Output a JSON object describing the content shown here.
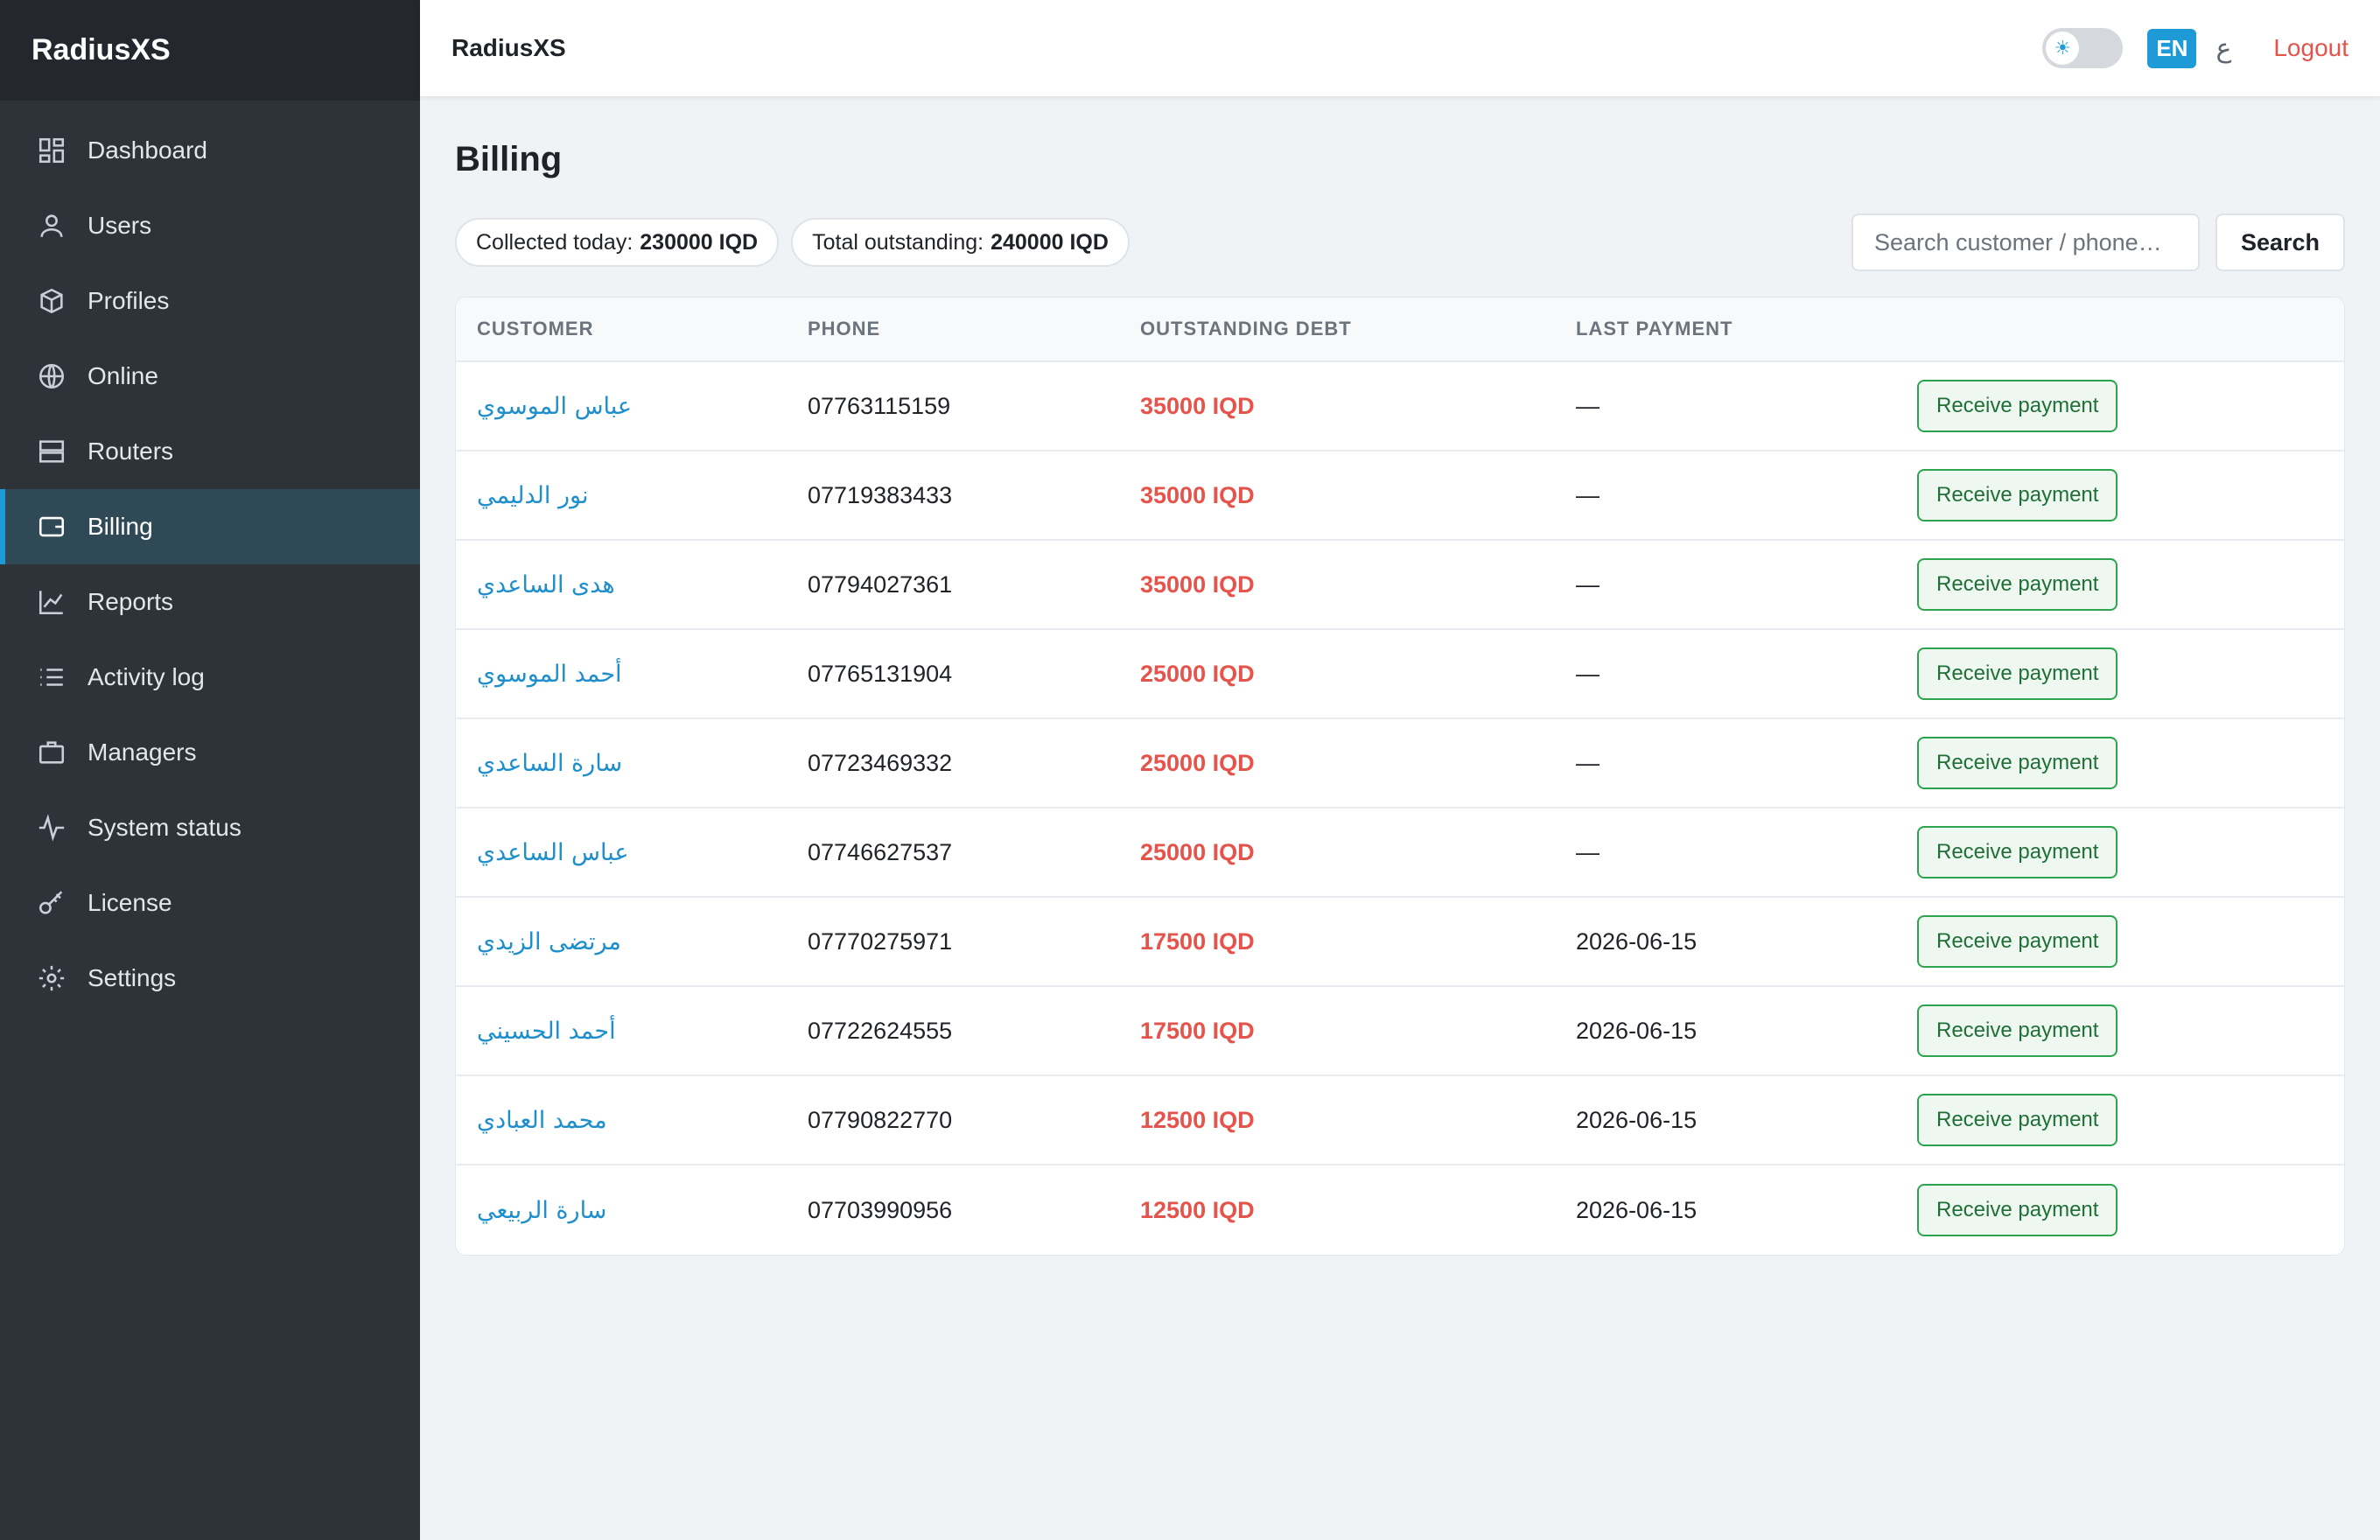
{
  "app": {
    "brand": "RadiusXS",
    "top_title": "RadiusXS"
  },
  "topbar": {
    "theme_icon": "sun-icon",
    "lang_en": "EN",
    "lang_ar": "ع",
    "logout": "Logout"
  },
  "sidebar": {
    "items": [
      {
        "label": "Dashboard",
        "icon": "dashboard-icon"
      },
      {
        "label": "Users",
        "icon": "user-icon"
      },
      {
        "label": "Profiles",
        "icon": "box-icon"
      },
      {
        "label": "Online",
        "icon": "globe-icon"
      },
      {
        "label": "Routers",
        "icon": "server-icon"
      },
      {
        "label": "Billing",
        "icon": "wallet-icon",
        "active": true
      },
      {
        "label": "Reports",
        "icon": "chart-icon"
      },
      {
        "label": "Activity log",
        "icon": "list-icon"
      },
      {
        "label": "Managers",
        "icon": "briefcase-icon"
      },
      {
        "label": "System status",
        "icon": "pulse-icon"
      },
      {
        "label": "License",
        "icon": "key-icon"
      },
      {
        "label": "Settings",
        "icon": "gear-icon"
      }
    ]
  },
  "page": {
    "title": "Billing",
    "collected_label": "Collected today:",
    "collected_value": "230000 IQD",
    "outstanding_label": "Total outstanding:",
    "outstanding_value": "240000 IQD",
    "search_placeholder": "Search customer / phone…",
    "search_button": "Search"
  },
  "table": {
    "headers": [
      "CUSTOMER",
      "PHONE",
      "OUTSTANDING DEBT",
      "LAST PAYMENT"
    ],
    "action_label": "Receive payment",
    "rows": [
      {
        "customer": "عباس الموسوي",
        "phone": "07763115159",
        "debt": "35000 IQD",
        "last": "—"
      },
      {
        "customer": "نور الدليمي",
        "phone": "07719383433",
        "debt": "35000 IQD",
        "last": "—"
      },
      {
        "customer": "هدى الساعدي",
        "phone": "07794027361",
        "debt": "35000 IQD",
        "last": "—"
      },
      {
        "customer": "أحمد الموسوي",
        "phone": "07765131904",
        "debt": "25000 IQD",
        "last": "—"
      },
      {
        "customer": "سارة الساعدي",
        "phone": "07723469332",
        "debt": "25000 IQD",
        "last": "—"
      },
      {
        "customer": "عباس الساعدي",
        "phone": "07746627537",
        "debt": "25000 IQD",
        "last": "—"
      },
      {
        "customer": "مرتضى الزيدي",
        "phone": "07770275971",
        "debt": "17500 IQD",
        "last": "2026-06-15"
      },
      {
        "customer": "أحمد الحسيني",
        "phone": "07722624555",
        "debt": "17500 IQD",
        "last": "2026-06-15"
      },
      {
        "customer": "محمد العبادي",
        "phone": "07790822770",
        "debt": "12500 IQD",
        "last": "2026-06-15"
      },
      {
        "customer": "سارة الربيعي",
        "phone": "07703990956",
        "debt": "12500 IQD",
        "last": "2026-06-15"
      }
    ]
  }
}
